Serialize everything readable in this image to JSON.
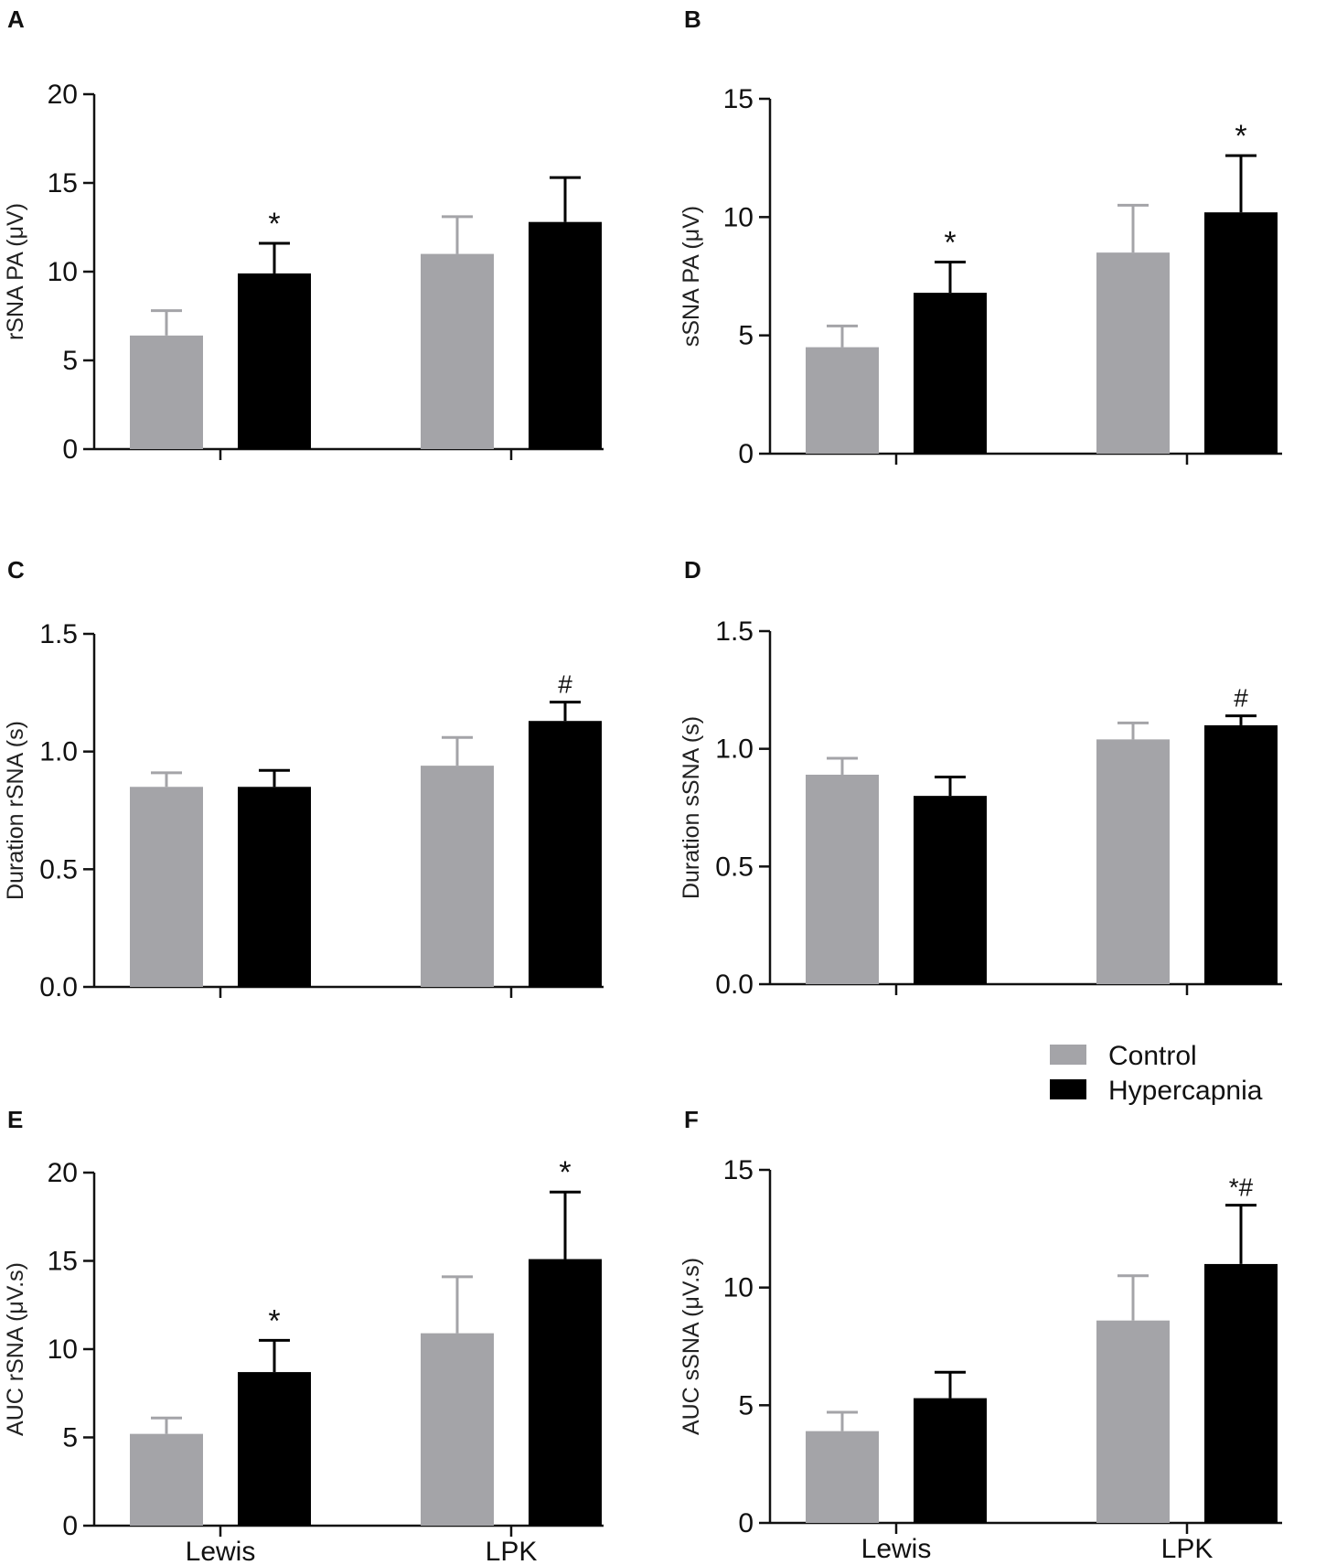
{
  "colors": {
    "control": "#a4a4a8",
    "hypercapnia": "#000000",
    "axis": "#111111"
  },
  "legend": {
    "control": "Control",
    "hypercapnia": "Hypercapnia"
  },
  "chart_data": [
    {
      "panel": "A",
      "type": "bar",
      "title": "",
      "categories": [
        "Lewis",
        "LPK"
      ],
      "show_category_labels": false,
      "ylabel": "rSNA PA (μV)",
      "ylim": [
        0,
        20
      ],
      "yticks": [
        "0",
        "5",
        "10",
        "15",
        "20"
      ],
      "ytick_values": [
        0,
        5,
        10,
        15,
        20
      ],
      "series": [
        {
          "name": "Control",
          "values": [
            6.4,
            11.0
          ],
          "errors": [
            1.4,
            2.1
          ]
        },
        {
          "name": "Hypercapnia",
          "values": [
            9.9,
            12.8
          ],
          "errors": [
            1.7,
            2.5
          ]
        }
      ],
      "annotations": [
        {
          "category": "Lewis",
          "series": "Hypercapnia",
          "text": "*"
        }
      ]
    },
    {
      "panel": "B",
      "type": "bar",
      "title": "",
      "categories": [
        "Lewis",
        "LPK"
      ],
      "show_category_labels": false,
      "ylabel": "sSNA PA (μV)",
      "ylim": [
        0,
        15
      ],
      "yticks": [
        "0",
        "5",
        "10",
        "15"
      ],
      "ytick_values": [
        0,
        5,
        10,
        15
      ],
      "series": [
        {
          "name": "Control",
          "values": [
            4.5,
            8.5
          ],
          "errors": [
            0.9,
            2.0
          ]
        },
        {
          "name": "Hypercapnia",
          "values": [
            6.8,
            10.2
          ],
          "errors": [
            1.3,
            2.4
          ]
        }
      ],
      "annotations": [
        {
          "category": "Lewis",
          "series": "Hypercapnia",
          "text": "*"
        },
        {
          "category": "LPK",
          "series": "Hypercapnia",
          "text": "*"
        }
      ]
    },
    {
      "panel": "C",
      "type": "bar",
      "title": "",
      "categories": [
        "Lewis",
        "LPK"
      ],
      "show_category_labels": false,
      "ylabel": "Duration rSNA (s)",
      "ylim": [
        0,
        1.5
      ],
      "yticks": [
        "0.0",
        "0.5",
        "1.0",
        "1.5"
      ],
      "ytick_values": [
        0,
        0.5,
        1.0,
        1.5
      ],
      "series": [
        {
          "name": "Control",
          "values": [
            0.85,
            0.94
          ],
          "errors": [
            0.06,
            0.12
          ]
        },
        {
          "name": "Hypercapnia",
          "values": [
            0.85,
            1.13
          ],
          "errors": [
            0.07,
            0.08
          ]
        }
      ],
      "annotations": [
        {
          "category": "LPK",
          "series": "Hypercapnia",
          "text": "#"
        }
      ]
    },
    {
      "panel": "D",
      "type": "bar",
      "title": "",
      "categories": [
        "Lewis",
        "LPK"
      ],
      "show_category_labels": false,
      "ylabel": "Duration sSNA (s)",
      "ylim": [
        0,
        1.5
      ],
      "yticks": [
        "0.0",
        "0.5",
        "1.0",
        "1.5"
      ],
      "ytick_values": [
        0,
        0.5,
        1.0,
        1.5
      ],
      "series": [
        {
          "name": "Control",
          "values": [
            0.89,
            1.04
          ],
          "errors": [
            0.07,
            0.07
          ]
        },
        {
          "name": "Hypercapnia",
          "values": [
            0.8,
            1.1
          ],
          "errors": [
            0.08,
            0.04
          ]
        }
      ],
      "annotations": [
        {
          "category": "LPK",
          "series": "Hypercapnia",
          "text": "#"
        }
      ]
    },
    {
      "panel": "E",
      "type": "bar",
      "title": "",
      "categories": [
        "Lewis",
        "LPK"
      ],
      "show_category_labels": true,
      "ylabel": "AUC rSNA (μV.s)",
      "ylim": [
        0,
        20
      ],
      "yticks": [
        "0",
        "5",
        "10",
        "15",
        "20"
      ],
      "ytick_values": [
        0,
        5,
        10,
        15,
        20
      ],
      "series": [
        {
          "name": "Control",
          "values": [
            5.2,
            10.9
          ],
          "errors": [
            0.9,
            3.2
          ]
        },
        {
          "name": "Hypercapnia",
          "values": [
            8.7,
            15.1
          ],
          "errors": [
            1.8,
            3.8
          ]
        }
      ],
      "annotations": [
        {
          "category": "Lewis",
          "series": "Hypercapnia",
          "text": "*"
        },
        {
          "category": "LPK",
          "series": "Hypercapnia",
          "text": "*"
        }
      ]
    },
    {
      "panel": "F",
      "type": "bar",
      "title": "",
      "categories": [
        "Lewis",
        "LPK"
      ],
      "show_category_labels": true,
      "ylabel": "AUC sSNA (μV.s)",
      "ylim": [
        0,
        15
      ],
      "yticks": [
        "0",
        "5",
        "10",
        "15"
      ],
      "ytick_values": [
        0,
        5,
        10,
        15
      ],
      "series": [
        {
          "name": "Control",
          "values": [
            3.9,
            8.6
          ],
          "errors": [
            0.8,
            1.9
          ]
        },
        {
          "name": "Hypercapnia",
          "values": [
            5.3,
            11.0
          ],
          "errors": [
            1.1,
            2.5
          ]
        }
      ],
      "annotations": [
        {
          "category": "LPK",
          "series": "Hypercapnia",
          "text": "*#"
        }
      ]
    }
  ]
}
